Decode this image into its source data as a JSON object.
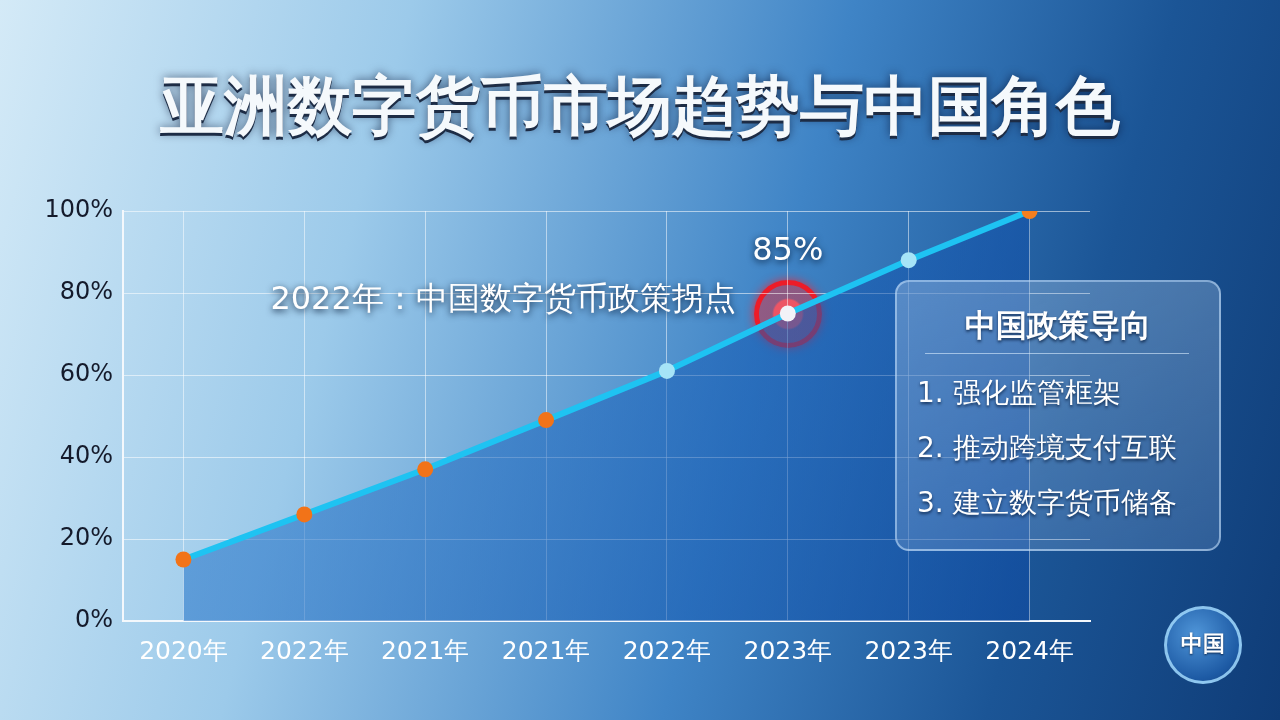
{
  "chart_data": [
    {
      "type": "area",
      "title": "亚洲数字货币市场趋势与中国角色",
      "categories": [
        "2020年",
        "2022年",
        "2021年",
        "2021年",
        "2022年",
        "2023年",
        "2023年",
        "2024年"
      ],
      "series": [
        {
          "color": "#1ec3f2",
          "colors": [
            "#f27318",
            "#f27318",
            "#f27318",
            "#f27318",
            "#a6e4f7",
            "#f2f2f7",
            "#a6e4f7",
            "#f57f1e"
          ],
          "values": [
            15,
            26,
            37,
            49,
            61,
            75,
            88,
            100
          ]
        }
      ],
      "ylim": [
        0,
        100
      ],
      "yticks": [
        {
          "value": 0,
          "label": "0%"
        },
        {
          "value": 20,
          "label": "20%"
        },
        {
          "value": 40,
          "label": "40%"
        },
        {
          "value": 60,
          "label": "60%"
        },
        {
          "value": 80,
          "label": "80%"
        },
        {
          "value": 100,
          "label": "100%"
        }
      ],
      "grid": true,
      "marker": "circle",
      "annotations": [
        "2022年：中国数字货币政策拐点",
        {
          "text": "85%",
          "x": "2023年",
          "y": 75
        }
      ]
    },
    {
      "type": "other",
      "title": "中国政策导向",
      "annotations": [
        "1. 强化监管框架",
        "2. 推动跨境支付互联",
        "3. 建立数字货币储备"
      ]
    },
    {
      "type": "other",
      "annotations": [
        "中国"
      ]
    }
  ]
}
